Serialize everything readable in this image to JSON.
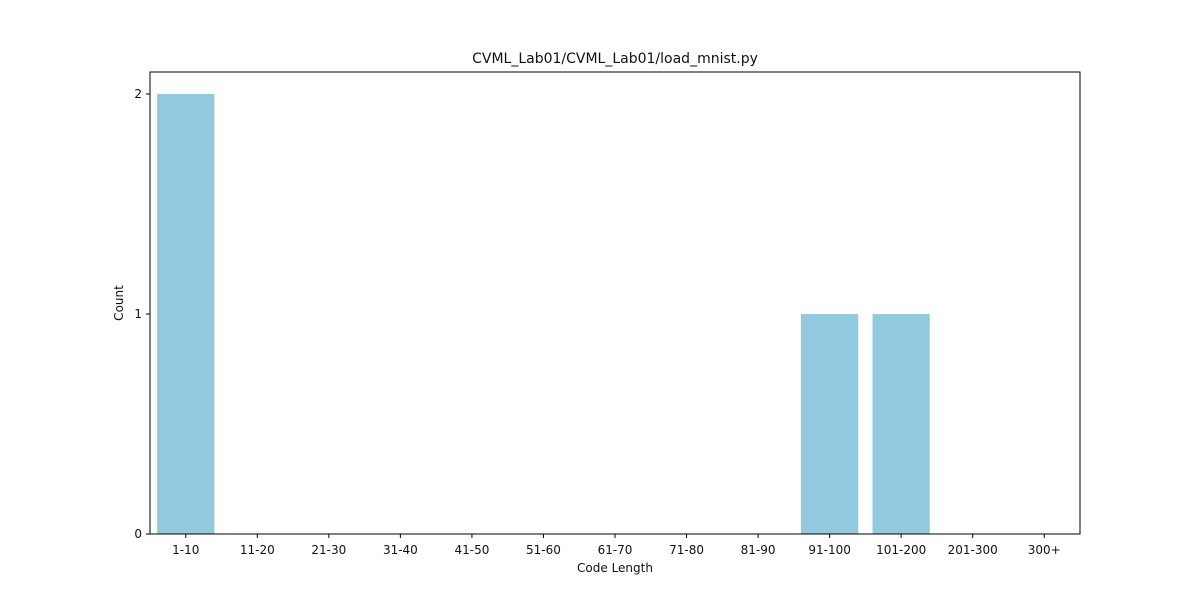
{
  "chart_data": {
    "type": "bar",
    "title": "CVML_Lab01/CVML_Lab01/load_mnist.py",
    "xlabel": "Code Length",
    "ylabel": "Count",
    "categories": [
      "1-10",
      "11-20",
      "21-30",
      "31-40",
      "41-50",
      "51-60",
      "61-70",
      "71-80",
      "81-90",
      "91-100",
      "101-200",
      "201-300",
      "300+"
    ],
    "values": [
      2,
      0,
      0,
      0,
      0,
      0,
      0,
      0,
      0,
      1,
      1,
      0,
      0
    ],
    "ylim": [
      0,
      2.1
    ],
    "yticks": [
      0,
      1,
      2
    ],
    "grid": false,
    "bar_color": "#92c9df"
  }
}
